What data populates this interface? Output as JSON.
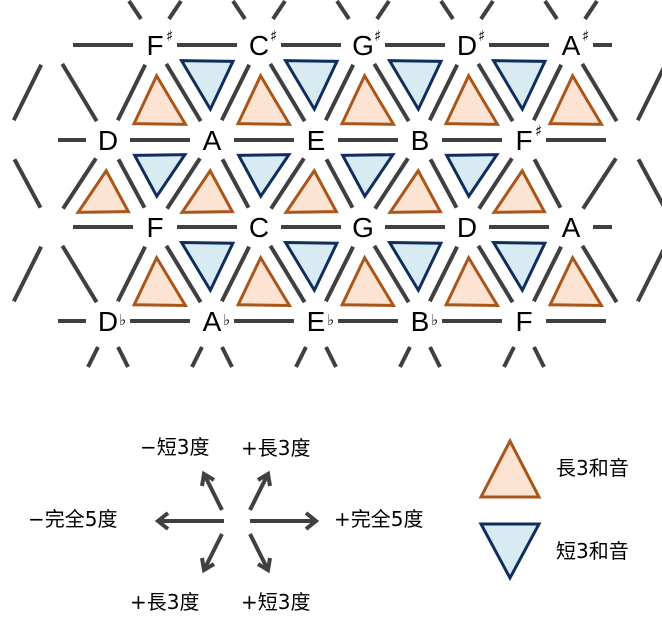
{
  "colors": {
    "major_fill": "#fde3d2",
    "major_stroke": "#a8561a",
    "minor_fill": "#d8ebf2",
    "minor_stroke": "#0f2e5e",
    "line": "#404040"
  },
  "rows": [
    {
      "notes": [
        {
          "name": "F",
          "acc": "♯"
        },
        {
          "name": "C",
          "acc": "♯"
        },
        {
          "name": "G",
          "acc": "♯"
        },
        {
          "name": "D",
          "acc": "♯"
        },
        {
          "name": "A",
          "acc": "♯"
        }
      ]
    },
    {
      "notes": [
        {
          "name": "D",
          "acc": ""
        },
        {
          "name": "A",
          "acc": ""
        },
        {
          "name": "E",
          "acc": ""
        },
        {
          "name": "B",
          "acc": ""
        },
        {
          "name": "F",
          "acc": "♯"
        }
      ]
    },
    {
      "notes": [
        {
          "name": "F",
          "acc": ""
        },
        {
          "name": "C",
          "acc": ""
        },
        {
          "name": "G",
          "acc": ""
        },
        {
          "name": "D",
          "acc": ""
        },
        {
          "name": "A",
          "acc": ""
        }
      ]
    },
    {
      "notes": [
        {
          "name": "D",
          "acc": "♭"
        },
        {
          "name": "A",
          "acc": "♭"
        },
        {
          "name": "E",
          "acc": "♭"
        },
        {
          "name": "B",
          "acc": "♭"
        },
        {
          "name": "F",
          "acc": ""
        }
      ]
    }
  ],
  "legend": {
    "minus_minor3": "−短3度",
    "plus_major3": "+長3度",
    "minus_fifth": "−完全5度",
    "plus_fifth": "+完全5度",
    "plus_major3_down": "+長3度",
    "plus_minor3_down": "+短3度",
    "major_chord": "長3和音",
    "minor_chord": "短3和音"
  }
}
